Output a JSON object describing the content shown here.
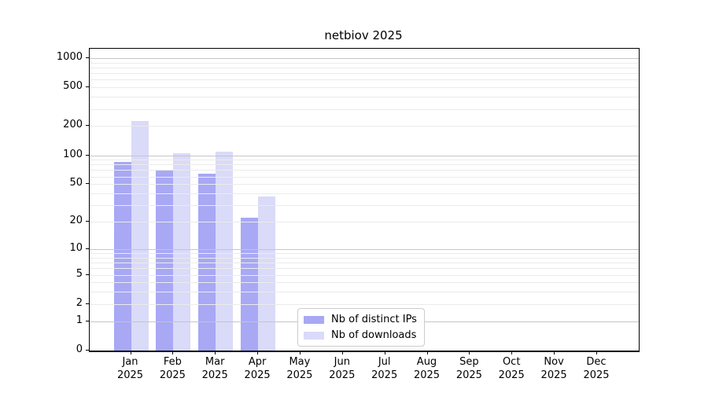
{
  "chart_data": {
    "type": "bar",
    "title": "netbiov 2025",
    "categories": [
      "Jan 2025",
      "Feb 2025",
      "Mar 2025",
      "Apr 2025",
      "May 2025",
      "Jun 2025",
      "Jul 2025",
      "Aug 2025",
      "Sep 2025",
      "Oct 2025",
      "Nov 2025",
      "Dec 2025"
    ],
    "series": [
      {
        "name": "Nb of distinct IPs",
        "color": "#a8a8f5",
        "values": [
          85,
          69,
          64,
          22,
          null,
          null,
          null,
          null,
          null,
          null,
          null,
          null
        ]
      },
      {
        "name": "Nb of downloads",
        "color": "#dadaf9",
        "values": [
          225,
          105,
          108,
          37,
          null,
          null,
          null,
          null,
          null,
          null,
          null,
          null
        ]
      }
    ],
    "yscale": "log1p",
    "ylim": [
      0,
      1240
    ],
    "y_tick_labels": [
      0,
      1,
      2,
      5,
      10,
      20,
      50,
      100,
      200,
      500,
      1000
    ],
    "y_major_gridlines": [
      1,
      10,
      100,
      1000
    ],
    "y_minor_gridlines": [
      2,
      3,
      4,
      5,
      6,
      7,
      8,
      9,
      20,
      30,
      40,
      50,
      60,
      70,
      80,
      90,
      200,
      300,
      400,
      500,
      600,
      700,
      800,
      900
    ],
    "grid": true,
    "legend_position": "lower-center",
    "xlabel": "",
    "ylabel": ""
  },
  "colors": {
    "background": "#ffffff",
    "axis": "#000000",
    "text": "#000000",
    "grid_major": "#c6c6c6",
    "grid_minor": "#ebebeb",
    "legend_border": "#cccccc",
    "bar_distinct_ips": "#a8a8f5",
    "bar_downloads": "#dadaf9"
  }
}
